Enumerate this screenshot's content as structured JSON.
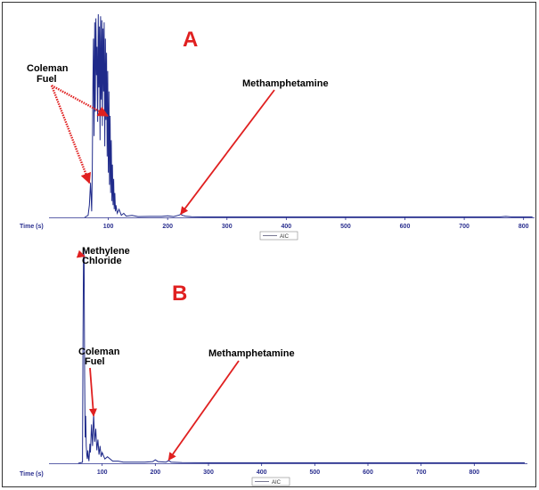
{
  "colors": {
    "trace": "#1f2a8a",
    "axis": "#2a2f8f",
    "arrow": "#e02020",
    "legend_line": "#555577"
  },
  "chart_data": [
    {
      "type": "line",
      "panel_label": "A",
      "xlabel": "Time (s)",
      "xlim": [
        0,
        820
      ],
      "xticks": [
        100,
        200,
        300,
        400,
        500,
        600,
        700,
        800
      ],
      "ylim": [
        0,
        100
      ],
      "grid": false,
      "legend": {
        "entries": [
          "AIC"
        ],
        "placement": "bottom-center"
      },
      "series": [
        {
          "name": "AIC",
          "x": [
            60,
            66,
            68,
            70,
            71,
            72,
            73,
            74,
            75,
            76,
            77,
            78,
            79,
            80,
            81,
            82,
            83,
            84,
            85,
            86,
            87,
            88,
            89,
            90,
            91,
            92,
            93,
            94,
            95,
            96,
            97,
            98,
            99,
            100,
            101,
            102,
            103,
            104,
            105,
            106,
            107,
            108,
            109,
            110,
            111,
            112,
            113,
            115,
            118,
            122,
            126,
            130,
            140,
            150,
            170,
            190,
            200,
            210,
            220,
            222,
            225,
            230,
            240,
            260,
            300,
            400,
            500,
            600,
            700,
            760,
            770,
            780,
            800,
            815
          ],
          "y": [
            0,
            1,
            6,
            17,
            10,
            3,
            24,
            66,
            88,
            40,
            96,
            52,
            98,
            70,
            84,
            47,
            100,
            64,
            94,
            38,
            99,
            58,
            97,
            45,
            93,
            62,
            96,
            35,
            88,
            48,
            81,
            30,
            72,
            22,
            62,
            16,
            50,
            12,
            38,
            8,
            26,
            6,
            19,
            4,
            12,
            3,
            6,
            2,
            4,
            1,
            2,
            0.6,
            1,
            0.4,
            0.5,
            0.5,
            0.8,
            0.4,
            1.2,
            1.6,
            1,
            0.6,
            0.3,
            0.2,
            0.2,
            0.2,
            0.2,
            0.2,
            0.2,
            0.2,
            0.5,
            0.2,
            0.2,
            0.2
          ]
        }
      ],
      "annotations": [
        {
          "text_lines": [
            "Coleman",
            "Fuel"
          ],
          "points_to": [
            [
              68,
              17
            ],
            [
              99,
              50
            ]
          ]
        },
        {
          "text_lines": [
            "Methamphetamine"
          ],
          "points_to": [
            [
              222,
              1.6
            ]
          ]
        }
      ]
    },
    {
      "type": "line",
      "panel_label": "B",
      "xlabel": "Time (s)",
      "xlim": [
        0,
        900
      ],
      "xticks": [
        100,
        200,
        300,
        400,
        500,
        600,
        700,
        800
      ],
      "ylim": [
        0,
        100
      ],
      "grid": false,
      "legend": {
        "entries": [
          "AIC"
        ],
        "placement": "bottom-center"
      },
      "series": [
        {
          "name": "AIC",
          "x": [
            55,
            63,
            64,
            65,
            66,
            67,
            68,
            69,
            70,
            71,
            72,
            73,
            74,
            75,
            76,
            77,
            78,
            80,
            82,
            84,
            86,
            88,
            90,
            92,
            94,
            96,
            98,
            100,
            105,
            110,
            120,
            130,
            140,
            160,
            180,
            195,
            200,
            205,
            220,
            225,
            230,
            250,
            300,
            400,
            500,
            600,
            700,
            800,
            895
          ],
          "y": [
            0,
            0.5,
            60,
            100,
            95,
            40,
            12,
            22,
            8,
            4,
            2,
            6,
            3,
            1,
            4,
            9,
            5,
            18,
            8,
            23,
            10,
            16,
            6,
            11,
            4,
            8,
            3,
            5,
            2,
            3,
            1,
            1,
            0.5,
            0.5,
            0.5,
            0.8,
            1.6,
            0.8,
            0.5,
            1.3,
            0.5,
            0.3,
            0.2,
            0.2,
            0.2,
            0.2,
            0.2,
            0.2,
            0.2
          ]
        }
      ],
      "annotations": [
        {
          "text_lines": [
            "Methylene",
            "Chloride"
          ],
          "points_to": [
            [
              67,
              96
            ]
          ]
        },
        {
          "text_lines": [
            "Coleman",
            "Fuel"
          ],
          "points_to": [
            [
              84,
              22
            ]
          ]
        },
        {
          "text_lines": [
            "Methamphetamine"
          ],
          "points_to": [
            [
              225,
              1.5
            ]
          ]
        }
      ]
    }
  ]
}
